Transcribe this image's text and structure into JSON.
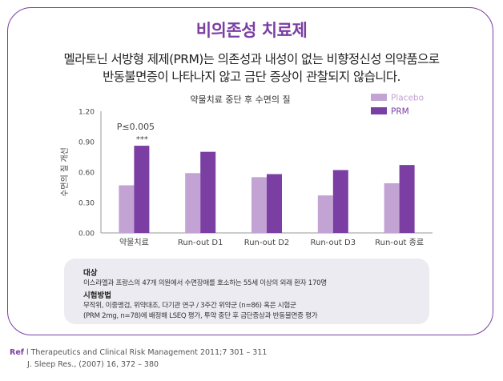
{
  "header": {
    "title": "비의존성 치료제",
    "subtitle_line1": "멜라토닌 서방형 제제(PRM)는 의존성과 내성이 없는 비향정신성 의약품으로",
    "subtitle_line2": "반동불면증이 나타나지 않고 금단 증상이 관찰되지 않습니다."
  },
  "chart_data": {
    "type": "bar",
    "title": "약물치료 중단 후 수면의 질",
    "ylabel": "수면의 질 개선",
    "xlabel": "",
    "categories": [
      "약물치료",
      "Run-out D1",
      "Run-out D2",
      "Run-out D3",
      "Run-out 종료"
    ],
    "yticks": [
      "0.00",
      "0.30",
      "0.60",
      "0.90",
      "1.20"
    ],
    "ylim": [
      0,
      1.2
    ],
    "grid": false,
    "legend_position": "top-right",
    "series": [
      {
        "name": "Placebo",
        "color": "#c2a3d3",
        "values": [
          0.47,
          0.59,
          0.55,
          0.37,
          0.49
        ]
      },
      {
        "name": "PRM",
        "color": "#7b3ea3",
        "values": [
          0.86,
          0.8,
          0.58,
          0.62,
          0.67
        ]
      }
    ],
    "annotation": {
      "category_index": 0,
      "line1": "P≤0.005",
      "line2": "***"
    }
  },
  "info_box": {
    "heading1": "대상",
    "text1": "이스라엘과 프랑스의 47개 의원에서 수면장애를 호소하는 55세 이상의 외래 환자 170명",
    "heading2": "시험방법",
    "text2": "무작위, 이중맹검, 위약대조, 다기관 연구 / 3주간 위약군 (n=86) 혹은 시험군",
    "text3": "(PRM 2mg, n=78)에 배정해 LSEQ 평가, 투약 중단 후 금단증상과 반동불면증 평가"
  },
  "references": {
    "label": "Ref",
    "separator": "l",
    "ref1": "Therapeutics and Clinical Risk Management 2011;7 301 – 311",
    "ref2": "J. Sleep Res., (2007) 16, 372 – 380"
  }
}
